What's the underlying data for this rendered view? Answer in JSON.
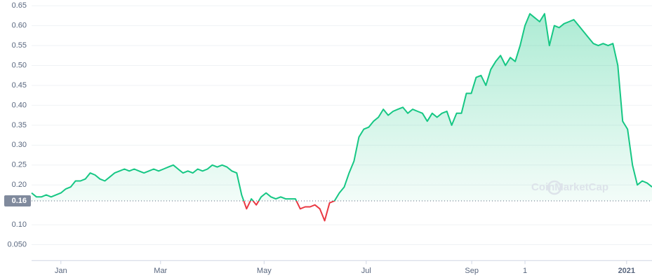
{
  "chart_data": {
    "type": "line",
    "watermark": "CoinMarketCap",
    "baseline": 0.16,
    "above_color": "#16c784",
    "below_color": "#ea3943",
    "grid": true,
    "ylim": [
      0.01,
      0.65
    ],
    "yticks": [
      {
        "value": 0.05,
        "label": "0.050"
      },
      {
        "value": 0.1,
        "label": "0.10"
      },
      {
        "value": 0.2,
        "label": "0.20"
      },
      0.25,
      {
        "value": 0.3,
        "label": "0.30"
      },
      0.35,
      {
        "value": 0.4,
        "label": "0.40"
      },
      0.45,
      {
        "value": 0.5,
        "label": "0.50"
      },
      0.55,
      {
        "value": 0.6,
        "label": "0.60"
      },
      0.65
    ],
    "xlim": [
      0,
      127
    ],
    "xticks": [
      {
        "value": 6,
        "label": "Jan"
      },
      {
        "value": 26.4,
        "label": "Mar"
      },
      {
        "value": 47.6,
        "label": "May"
      },
      {
        "value": 68.5,
        "label": "Jul"
      },
      {
        "value": 90.1,
        "label": "Sep"
      },
      {
        "value": 101,
        "label": "1"
      },
      {
        "value": 121.8,
        "label": "2021"
      }
    ],
    "values": [
      0.18,
      0.17,
      0.17,
      0.175,
      0.17,
      0.175,
      0.18,
      0.19,
      0.195,
      0.21,
      0.21,
      0.215,
      0.23,
      0.225,
      0.215,
      0.21,
      0.22,
      0.23,
      0.235,
      0.24,
      0.235,
      0.24,
      0.235,
      0.23,
      0.235,
      0.24,
      0.235,
      0.24,
      0.245,
      0.25,
      0.24,
      0.23,
      0.235,
      0.23,
      0.24,
      0.235,
      0.24,
      0.25,
      0.245,
      0.25,
      0.245,
      0.235,
      0.23,
      0.175,
      0.14,
      0.165,
      0.15,
      0.17,
      0.18,
      0.17,
      0.165,
      0.17,
      0.165,
      0.165,
      0.165,
      0.14,
      0.145,
      0.145,
      0.15,
      0.14,
      0.11,
      0.155,
      0.16,
      0.18,
      0.195,
      0.23,
      0.26,
      0.32,
      0.34,
      0.345,
      0.36,
      0.37,
      0.39,
      0.375,
      0.385,
      0.39,
      0.395,
      0.38,
      0.39,
      0.385,
      0.38,
      0.36,
      0.38,
      0.37,
      0.38,
      0.385,
      0.35,
      0.38,
      0.38,
      0.43,
      0.43,
      0.47,
      0.475,
      0.45,
      0.49,
      0.51,
      0.525,
      0.5,
      0.52,
      0.51,
      0.55,
      0.6,
      0.63,
      0.62,
      0.61,
      0.63,
      0.55,
      0.6,
      0.595,
      0.605,
      0.61,
      0.615,
      0.6,
      0.585,
      0.57,
      0.555,
      0.55,
      0.555,
      0.55,
      0.555,
      0.5,
      0.36,
      0.34,
      0.25,
      0.2,
      0.21,
      0.205,
      0.195
    ]
  }
}
